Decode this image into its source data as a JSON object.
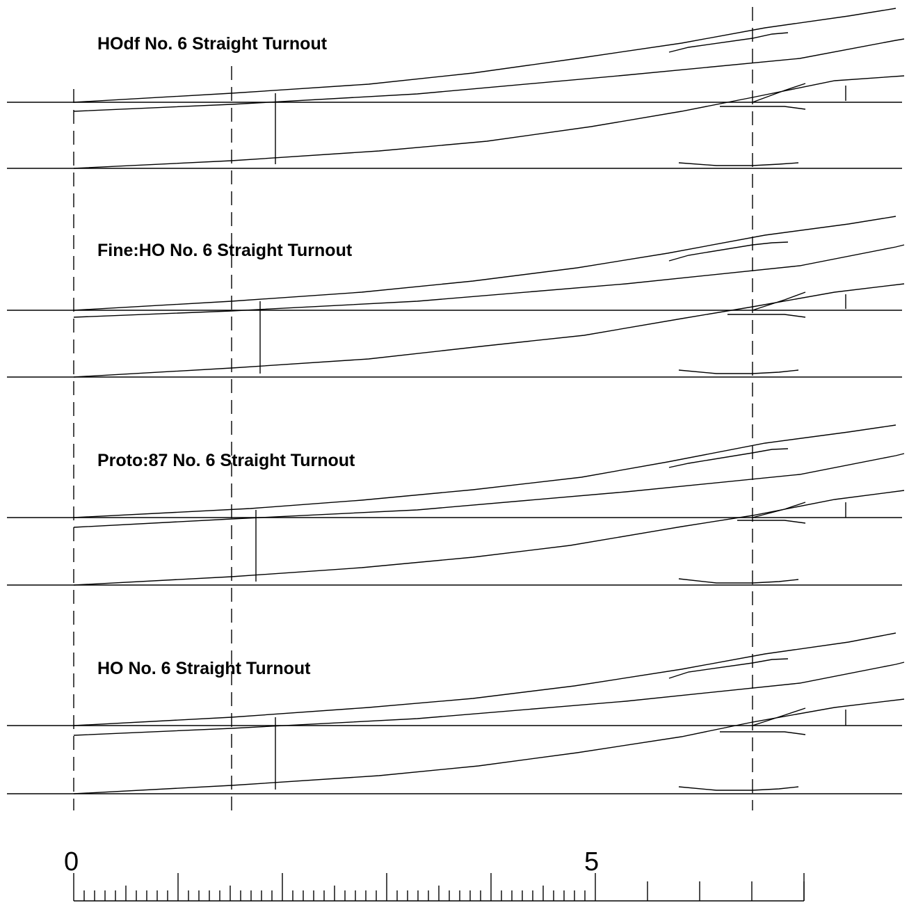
{
  "turnouts": [
    {
      "title": "HOdf No. 6 Straight Turnout"
    },
    {
      "title": "Fine:HO No. 6 Straight Turnout"
    },
    {
      "title": "Proto:87 No. 6 Straight Turnout"
    },
    {
      "title": "HO No. 6 Straight Turnout"
    }
  ],
  "scale": {
    "start_label": "0",
    "mid_label": "5"
  },
  "colors": {
    "line": "#000000",
    "background": "#ffffff"
  }
}
